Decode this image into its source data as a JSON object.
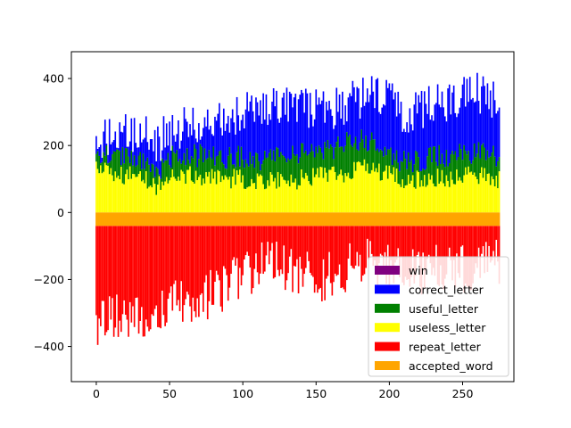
{
  "chart_data": {
    "type": "bar",
    "title": "",
    "xlabel": "",
    "ylabel": "",
    "xlim": [
      -17,
      285
    ],
    "ylim": [
      -505,
      480
    ],
    "x_ticks": [
      0,
      50,
      100,
      150,
      200,
      250
    ],
    "y_ticks": [
      -400,
      -200,
      0,
      200,
      400
    ],
    "x_tick_labels": [
      "0",
      "50",
      "100",
      "150",
      "200",
      "250"
    ],
    "y_tick_labels": [
      "−400",
      "−200",
      "0",
      "200",
      "400"
    ],
    "n_bars": 276,
    "legend_position": "lower right",
    "series": [
      {
        "name": "win",
        "color": "#800080",
        "profile_x": [
          0,
          275
        ],
        "profile_value": [
          0,
          0
        ]
      },
      {
        "name": "correct_letter",
        "color": "#0000ff",
        "profile_x": [
          0,
          10,
          20,
          30,
          35,
          40,
          50,
          60,
          70,
          80,
          90,
          100,
          110,
          120,
          130,
          140,
          150,
          160,
          170,
          180,
          190,
          200,
          210,
          220,
          230,
          240,
          250,
          260,
          270,
          275
        ],
        "profile_value": [
          220,
          225,
          230,
          232,
          235,
          190,
          245,
          255,
          262,
          270,
          290,
          300,
          300,
          315,
          325,
          315,
          305,
          305,
          320,
          340,
          355,
          330,
          300,
          305,
          320,
          330,
          350,
          360,
          345,
          320
        ]
      },
      {
        "name": "useful_letter",
        "color": "#008000",
        "profile_x": [
          0,
          10,
          20,
          30,
          35,
          40,
          50,
          60,
          70,
          80,
          90,
          100,
          110,
          120,
          130,
          140,
          150,
          160,
          170,
          180,
          190,
          200,
          210,
          220,
          230,
          240,
          250,
          260,
          270,
          275
        ],
        "profile_value": [
          175,
          165,
          160,
          155,
          150,
          115,
          165,
          170,
          170,
          165,
          165,
          165,
          160,
          160,
          170,
          175,
          180,
          190,
          205,
          215,
          210,
          175,
          150,
          155,
          165,
          170,
          175,
          180,
          175,
          165
        ]
      },
      {
        "name": "useless_letter",
        "color": "#ffff00",
        "profile_x": [
          0,
          10,
          20,
          30,
          35,
          40,
          50,
          60,
          70,
          80,
          90,
          100,
          110,
          120,
          130,
          140,
          150,
          160,
          170,
          180,
          190,
          200,
          210,
          220,
          230,
          240,
          250,
          260,
          270,
          275
        ],
        "profile_value": [
          125,
          118,
          110,
          105,
          100,
          75,
          112,
          115,
          110,
          105,
          102,
          100,
          95,
          90,
          95,
          100,
          105,
          110,
          120,
          130,
          125,
          110,
          95,
          95,
          100,
          105,
          108,
          110,
          105,
          100
        ]
      },
      {
        "name": "repeat_letter",
        "color": "#ff0000",
        "profile_x": [
          0,
          10,
          20,
          30,
          40,
          50,
          60,
          70,
          80,
          90,
          100,
          110,
          120,
          130,
          140,
          150,
          160,
          170,
          180,
          190,
          200,
          210,
          220,
          230,
          240,
          250,
          260,
          270,
          275
        ],
        "profile_value": [
          -290,
          -275,
          -270,
          -265,
          -255,
          -245,
          -235,
          -220,
          -205,
          -180,
          -160,
          -135,
          -115,
          -130,
          -145,
          -160,
          -150,
          -130,
          -115,
          -120,
          -125,
          -130,
          -135,
          -135,
          -130,
          -130,
          -125,
          -120,
          -120
        ]
      },
      {
        "name": "accepted_word",
        "color": "#ffa500",
        "profile_x": [
          0,
          275
        ],
        "profile_value": [
          -40,
          -40
        ]
      }
    ]
  }
}
